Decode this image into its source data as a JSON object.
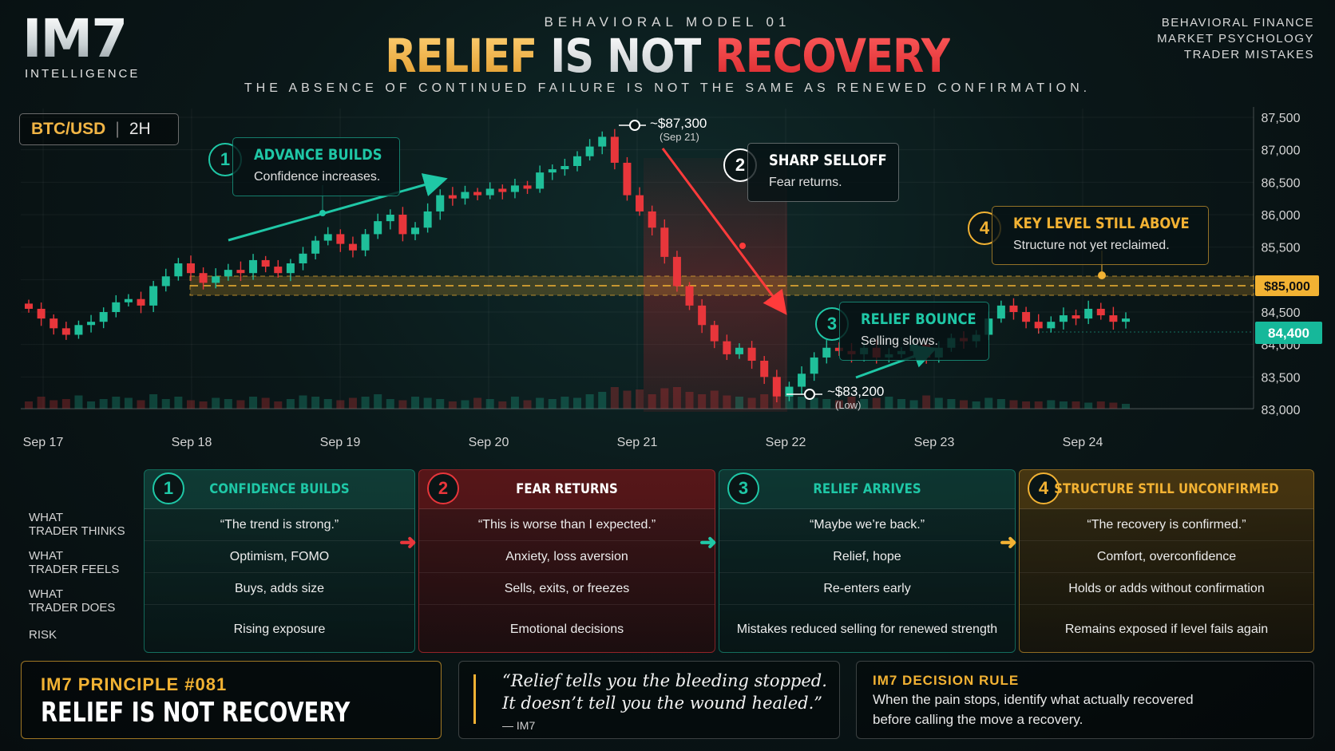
{
  "header": {
    "logo": "IM7",
    "logo_sub": "INTELLIGENCE",
    "eyebrow": "BEHAVIORAL MODEL 01",
    "headline_1": "RELIEF",
    "headline_2": "IS NOT",
    "headline_3": "RECOVERY",
    "tagline": "THE ABSENCE OF CONTINUED FAILURE IS NOT THE SAME AS RENEWED CONFIRMATION.",
    "tags": [
      "BEHAVIORAL FINANCE",
      "MARKET PSYCHOLOGY",
      "TRADER MISTAKES"
    ]
  },
  "colors": {
    "teal": "#1fc7a6",
    "red": "#e8363b",
    "gold": "#f2b233",
    "up_candle": "#1fbf9a",
    "down_candle": "#e8363b"
  },
  "chart_data": {
    "type": "candlestick",
    "pair": "BTC/USD",
    "pair_sep": "|",
    "timeframe": "2H",
    "y_ticks": [
      87500,
      87000,
      86500,
      86000,
      85500,
      85000,
      84500,
      84000,
      83500,
      83000
    ],
    "y_tick_labels": [
      "87,500",
      "87,000",
      "86,500",
      "86,000",
      "85,500",
      "$85,000",
      "84,500",
      "84,000",
      "83,500",
      "83,000"
    ],
    "ylim": [
      83000,
      87700
    ],
    "x_labels": [
      "Sep 17",
      "Sep 18",
      "Sep 19",
      "Sep 20",
      "Sep 21",
      "Sep 22",
      "Sep 23",
      "Sep 24"
    ],
    "key_level": 85000,
    "key_level_label": "$85,000",
    "current_price": 84400,
    "current_price_label": "84,400",
    "high_label": "~$87,300",
    "high_sub": "(Sep 21)",
    "low_label": "~$83,200",
    "low_sub": "(Low)",
    "closes": [
      84550,
      84400,
      84250,
      84150,
      84300,
      84350,
      84500,
      84650,
      84700,
      84600,
      84900,
      85050,
      85250,
      85100,
      84950,
      85050,
      85150,
      85100,
      85300,
      85200,
      85100,
      85250,
      85400,
      85600,
      85700,
      85550,
      85450,
      85700,
      85900,
      86000,
      85700,
      85800,
      86050,
      86300,
      86250,
      86350,
      86300,
      86400,
      86350,
      86450,
      86400,
      86650,
      86700,
      86750,
      86900,
      87050,
      87200,
      86800,
      86300,
      86050,
      85800,
      85350,
      84900,
      84600,
      84300,
      84050,
      83850,
      83950,
      83750,
      83500,
      83200,
      83350,
      83550,
      83800,
      83950,
      83900,
      83850,
      83950,
      83800,
      83850,
      83900,
      84000,
      83800,
      83950,
      84100,
      84050,
      84150,
      84400,
      84600,
      84500,
      84350,
      84250,
      84350,
      84450,
      84400,
      84550,
      84450,
      84350,
      84400
    ],
    "volumes": [
      0.3,
      0.5,
      0.35,
      0.4,
      0.55,
      0.3,
      0.4,
      0.5,
      0.45,
      0.35,
      0.6,
      0.4,
      0.5,
      0.35,
      0.3,
      0.45,
      0.4,
      0.35,
      0.5,
      0.45,
      0.3,
      0.4,
      0.55,
      0.5,
      0.4,
      0.35,
      0.45,
      0.5,
      0.6,
      0.4,
      0.35,
      0.5,
      0.45,
      0.4,
      0.3,
      0.35,
      0.45,
      0.4,
      0.3,
      0.5,
      0.35,
      0.45,
      0.4,
      0.5,
      0.45,
      0.6,
      0.7,
      0.9,
      0.75,
      0.8,
      0.6,
      0.85,
      0.9,
      0.7,
      0.6,
      0.75,
      0.55,
      0.5,
      0.45,
      0.6,
      0.85,
      0.55,
      0.5,
      0.45,
      0.4,
      0.35,
      0.5,
      0.4,
      0.45,
      0.5,
      0.4,
      0.35,
      0.55,
      0.45,
      0.4,
      0.35,
      0.3,
      0.45,
      0.4,
      0.35,
      0.3,
      0.3,
      0.35,
      0.3,
      0.3,
      0.25,
      0.3,
      0.25,
      0.2
    ]
  },
  "pair_box": {
    "pair": "BTC/USD",
    "sep": "|",
    "tf": "2H"
  },
  "callouts": [
    {
      "n": "1",
      "title": "ADVANCE BUILDS",
      "sub": "Confidence increases."
    },
    {
      "n": "2",
      "title": "SHARP SELLOFF",
      "sub": "Fear returns."
    },
    {
      "n": "3",
      "title": "RELIEF BOUNCE",
      "sub": "Selling slows."
    },
    {
      "n": "4",
      "title": "KEY LEVEL STILL ABOVE",
      "sub": "Structure not yet reclaimed."
    }
  ],
  "table": {
    "row_labels": [
      [
        "WHAT",
        "TRADER THINKS"
      ],
      [
        "WHAT",
        "TRADER FEELS"
      ],
      [
        "WHAT",
        "TRADER DOES"
      ],
      [
        "RISK",
        ""
      ]
    ],
    "columns": [
      {
        "n": "1",
        "title": "CONFIDENCE BUILDS",
        "thinks": "“The trend is strong.”",
        "feels": "Optimism, FOMO",
        "does": "Buys, adds size",
        "risk": "Rising exposure"
      },
      {
        "n": "2",
        "title": "FEAR RETURNS",
        "thinks": "“This is worse than I expected.”",
        "feels": "Anxiety, loss aversion",
        "does": "Sells, exits, or freezes",
        "risk": "Emotional decisions"
      },
      {
        "n": "3",
        "title": "RELIEF ARRIVES",
        "thinks": "“Maybe we’re back.”",
        "feels": "Relief, hope",
        "does": "Re-enters early",
        "risk": "Mistakes reduced selling for renewed strength"
      },
      {
        "n": "4",
        "title": "STRUCTURE STILL UNCONFIRMED",
        "thinks": "“The recovery is confirmed.”",
        "feels": "Comfort, overconfidence",
        "does": "Holds or adds without confirmation",
        "risk": "Remains exposed if level fails again"
      }
    ]
  },
  "footer": {
    "principle_label": "IM7 PRINCIPLE #081",
    "principle_title": "RELIEF IS NOT RECOVERY",
    "quote_1": "“Relief tells you the bleeding stopped.",
    "quote_2": "It doesn’t tell you the wound healed.”",
    "quote_attr": "— IM7",
    "rule_label": "IM7 DECISION RULE",
    "rule_1": "When the pain stops, identify what actually recovered",
    "rule_2": "before calling the move a recovery."
  }
}
